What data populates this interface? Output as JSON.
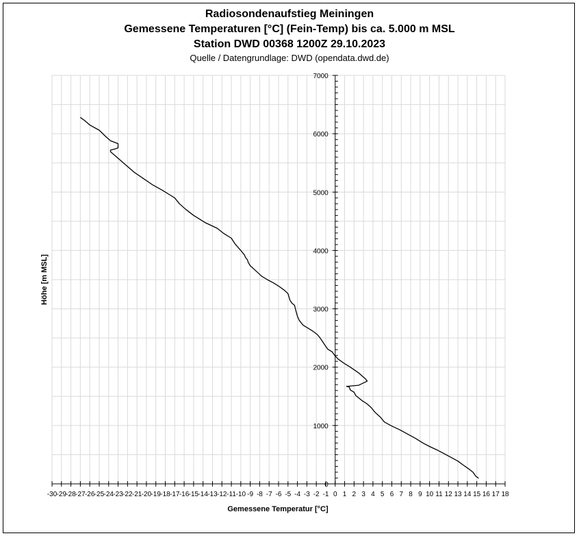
{
  "chart_data": {
    "type": "line",
    "title": "Radiosondenaufstieg Meiningen",
    "title_line2": "Gemessene Temperaturen [°C] (Fein-Temp) bis ca. 5.000 m MSL",
    "title_line3": "Station DWD 00368 1200Z 29.10.2023",
    "subtitle": "Quelle / Datengrundlage: DWD (opendata.dwd.de)",
    "xlabel": "Gemessene Temperatur [°C]",
    "ylabel": "Höhe [m MSL]",
    "xlim": [
      -30,
      18
    ],
    "ylim": [
      0,
      7000
    ],
    "x_ticks": [
      -30,
      -29,
      -28,
      -27,
      -26,
      -25,
      -24,
      -23,
      -22,
      -21,
      -20,
      -19,
      -18,
      -17,
      -16,
      -15,
      -14,
      -13,
      -12,
      -11,
      -10,
      -9,
      -8,
      -7,
      -6,
      -5,
      -4,
      -3,
      -2,
      -1,
      0,
      1,
      2,
      3,
      4,
      5,
      6,
      7,
      8,
      9,
      10,
      11,
      12,
      13,
      14,
      15,
      16,
      17,
      18
    ],
    "x_tick_labels": [
      "-30",
      "-29",
      "-28",
      "-27",
      "-26",
      "-25",
      "-24",
      "-23",
      "-22",
      "-21",
      "-20",
      "-19",
      "-18",
      "-17",
      "-16",
      "-15",
      "-14",
      "-13",
      "-12",
      "-11",
      "-10",
      "-9",
      "-8",
      "-7",
      "-6",
      "-5",
      "-4",
      "-3",
      "-2",
      "-1",
      "0",
      "1",
      "2",
      "3",
      "4",
      "5",
      "6",
      "7",
      "8",
      "9",
      "10",
      "11",
      "12",
      "13",
      "14",
      "15",
      "16",
      "17",
      "18"
    ],
    "y_ticks": [
      0,
      1000,
      2000,
      3000,
      4000,
      5000,
      6000,
      7000
    ],
    "y_tick_labels": [
      "0",
      "1000",
      "2000",
      "3000",
      "4000",
      "5000",
      "6000",
      "7000"
    ],
    "grid": true,
    "series": [
      {
        "color": "#000000",
        "points": [
          [
            15.2,
            95
          ],
          [
            14.9,
            130
          ],
          [
            14.6,
            200
          ],
          [
            14.2,
            250
          ],
          [
            13.5,
            330
          ],
          [
            13.0,
            390
          ],
          [
            12.2,
            460
          ],
          [
            11.5,
            520
          ],
          [
            10.8,
            580
          ],
          [
            10.0,
            640
          ],
          [
            9.3,
            700
          ],
          [
            8.5,
            780
          ],
          [
            7.6,
            860
          ],
          [
            6.8,
            930
          ],
          [
            6.0,
            990
          ],
          [
            5.2,
            1060
          ],
          [
            4.8,
            1140
          ],
          [
            4.2,
            1230
          ],
          [
            3.8,
            1310
          ],
          [
            3.3,
            1380
          ],
          [
            2.9,
            1420
          ],
          [
            2.6,
            1460
          ],
          [
            2.2,
            1510
          ],
          [
            2.0,
            1570
          ],
          [
            1.6,
            1610
          ],
          [
            1.5,
            1660
          ],
          [
            1.2,
            1670
          ],
          [
            2.5,
            1690
          ],
          [
            3.4,
            1760
          ],
          [
            3.2,
            1800
          ],
          [
            2.5,
            1900
          ],
          [
            1.6,
            2000
          ],
          [
            1.0,
            2060
          ],
          [
            0.3,
            2140
          ],
          [
            -0.1,
            2210
          ],
          [
            -0.3,
            2260
          ],
          [
            -0.8,
            2310
          ],
          [
            -1.1,
            2380
          ],
          [
            -1.3,
            2430
          ],
          [
            -1.6,
            2500
          ],
          [
            -1.9,
            2560
          ],
          [
            -2.4,
            2620
          ],
          [
            -2.9,
            2670
          ],
          [
            -3.4,
            2720
          ],
          [
            -3.8,
            2800
          ],
          [
            -4.0,
            2870
          ],
          [
            -4.1,
            2930
          ],
          [
            -4.2,
            2990
          ],
          [
            -4.3,
            3060
          ],
          [
            -4.6,
            3100
          ],
          [
            -4.8,
            3150
          ],
          [
            -5.0,
            3260
          ],
          [
            -5.4,
            3320
          ],
          [
            -6.0,
            3390
          ],
          [
            -6.5,
            3440
          ],
          [
            -7.2,
            3500
          ],
          [
            -7.8,
            3560
          ],
          [
            -8.2,
            3620
          ],
          [
            -8.6,
            3680
          ],
          [
            -9.0,
            3740
          ],
          [
            -9.2,
            3790
          ],
          [
            -9.3,
            3840
          ],
          [
            -9.5,
            3880
          ],
          [
            -9.6,
            3920
          ],
          [
            -10.0,
            4000
          ],
          [
            -10.6,
            4110
          ],
          [
            -11.0,
            4210
          ],
          [
            -11.8,
            4290
          ],
          [
            -12.5,
            4380
          ],
          [
            -13.8,
            4480
          ],
          [
            -15.0,
            4600
          ],
          [
            -15.8,
            4700
          ],
          [
            -16.5,
            4800
          ],
          [
            -17.0,
            4900
          ],
          [
            -17.5,
            4950
          ],
          [
            -18.3,
            5030
          ],
          [
            -19.3,
            5120
          ],
          [
            -20.3,
            5230
          ],
          [
            -21.3,
            5340
          ],
          [
            -22.3,
            5480
          ],
          [
            -23.5,
            5650
          ],
          [
            -23.8,
            5690
          ],
          [
            -23.8,
            5720
          ],
          [
            -23.3,
            5740
          ],
          [
            -23.0,
            5760
          ],
          [
            -23.0,
            5830
          ],
          [
            -23.8,
            5880
          ],
          [
            -24.3,
            5950
          ],
          [
            -25.0,
            6060
          ],
          [
            -26.0,
            6150
          ],
          [
            -26.5,
            6220
          ],
          [
            -27.0,
            6280
          ]
        ]
      }
    ]
  }
}
